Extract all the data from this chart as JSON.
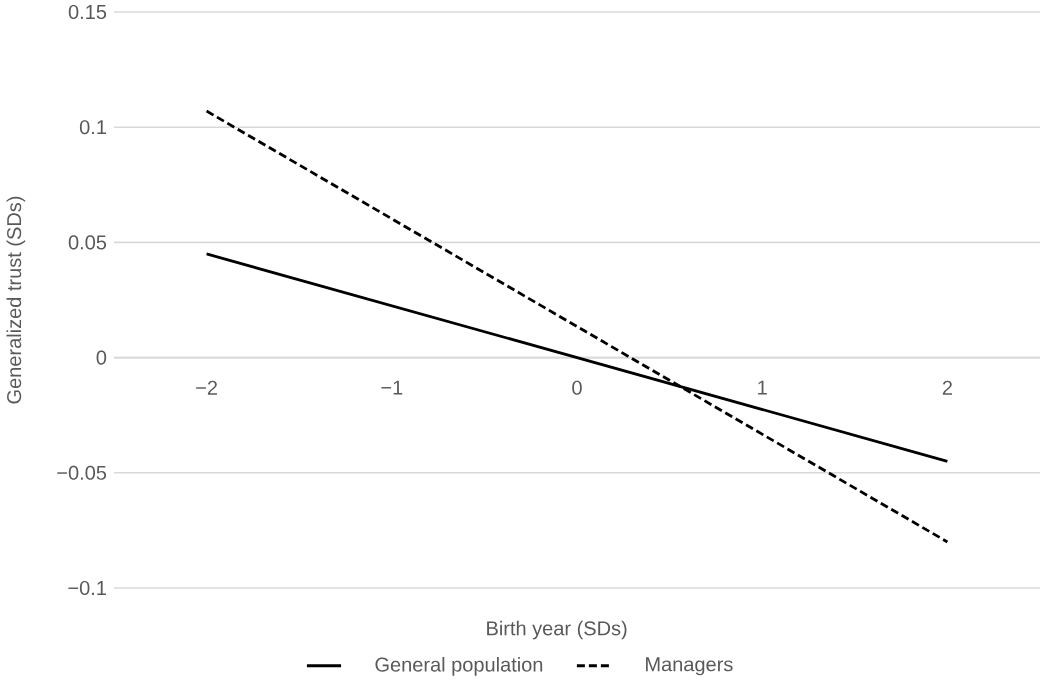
{
  "chart_data": {
    "type": "line",
    "xlabel": "Birth year (SDs)",
    "ylabel": "Generalized trust (SDs)",
    "x": [
      -2,
      2
    ],
    "series": [
      {
        "name": "General population",
        "color": "#000000",
        "line_style": "solid",
        "values": [
          0.045,
          -0.045
        ]
      },
      {
        "name": "Managers",
        "color": "#000000",
        "line_style": "dashed",
        "values": [
          0.107,
          -0.08
        ]
      }
    ],
    "xlim": [
      -2.5,
      2.5
    ],
    "ylim": [
      -0.1,
      0.15
    ],
    "xticks": [
      {
        "value": -2,
        "label": "−2"
      },
      {
        "value": -1,
        "label": "−1"
      },
      0,
      1,
      2
    ],
    "yticks": [
      {
        "value": -0.1,
        "label": "−0.1"
      },
      {
        "value": -0.05,
        "label": "−0.05"
      },
      0,
      0.05,
      0.1,
      0.15
    ],
    "grid": "y",
    "legend": "bottom",
    "marker": "none"
  }
}
